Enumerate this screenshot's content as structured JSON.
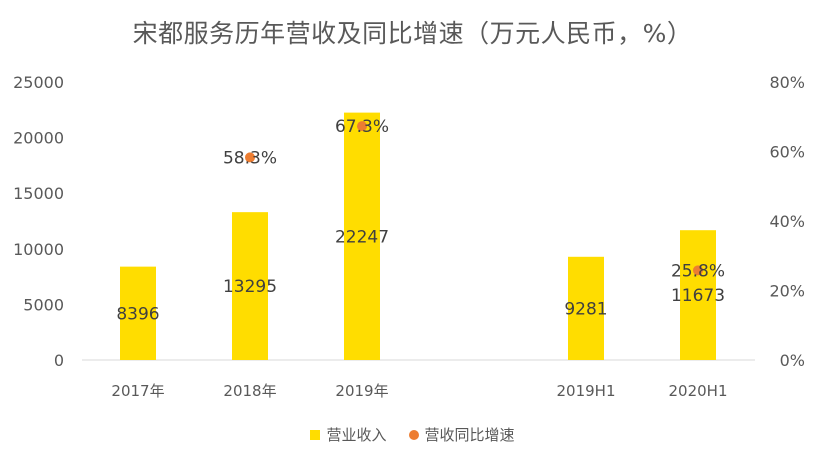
{
  "chart_data": {
    "type": "bar",
    "title": "宋都服务历年营收及同比增速（万元人民币，%）",
    "categories": [
      "2017年",
      "2018年",
      "2019年",
      "",
      "2019H1",
      "2020H1"
    ],
    "series": [
      {
        "name": "营业收入",
        "type": "bar",
        "axis": "left",
        "values": [
          8396,
          13295,
          22247,
          null,
          9281,
          11673
        ],
        "labels": [
          "8396",
          "13295",
          "22247",
          "",
          "9281",
          "11673"
        ]
      },
      {
        "name": "营收同比增速",
        "type": "scatter",
        "axis": "right",
        "values": [
          null,
          58.3,
          67.3,
          null,
          null,
          25.8
        ],
        "labels": [
          "",
          "58.3%",
          "67.3%",
          "",
          "",
          "25.8%"
        ]
      }
    ],
    "y_left": {
      "min": 0,
      "max": 25000,
      "ticks": [
        "0",
        "5000",
        "10000",
        "15000",
        "20000",
        "25000"
      ]
    },
    "y_right": {
      "min": 0,
      "max": 80,
      "ticks": [
        "0%",
        "20%",
        "40%",
        "60%",
        "80%"
      ]
    },
    "grid": false,
    "legend": "bottom",
    "colors": {
      "bar": "#FFDD00",
      "dot": "#ED7D31"
    }
  }
}
